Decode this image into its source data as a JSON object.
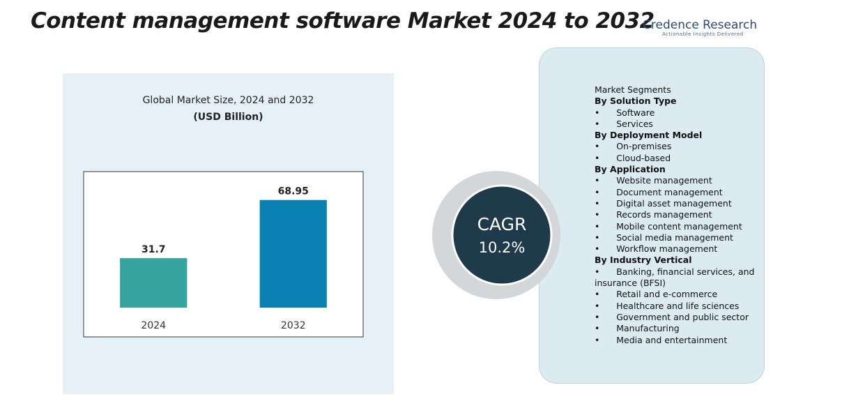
{
  "title": "Content management software Market 2024 to 2032",
  "logo": {
    "name": "Credence Research",
    "tagline": "Actionable Insights Delivered"
  },
  "chart_data": {
    "type": "bar",
    "title": "Global Market Size, 2024 and 2032",
    "subtitle": "(USD Billion)",
    "categories": [
      "2024",
      "2032"
    ],
    "values": [
      31.7,
      68.95
    ],
    "colors": [
      "#37a39f",
      "#0b80b2"
    ],
    "ylim": [
      0,
      80
    ]
  },
  "cagr": {
    "label": "CAGR",
    "value": "10.2%"
  },
  "segments": {
    "heading": "Market Segments",
    "groups": [
      {
        "name": "By Solution Type",
        "items": [
          "Software",
          "Services"
        ]
      },
      {
        "name": "By Deployment Model",
        "items": [
          "On-premises",
          "Cloud-based"
        ]
      },
      {
        "name": "By Application",
        "items": [
          "Website management",
          "Document management",
          "Digital asset management",
          "Records management",
          "Mobile content management",
          "Social media management",
          "Workflow management"
        ]
      },
      {
        "name": "By Industry Vertical",
        "items": [
          "Banking, financial services, and insurance (BFSI)",
          "Retail and e-commerce",
          "Healthcare and life sciences",
          "Government and public sector",
          "Manufacturing",
          "Media and entertainment"
        ]
      }
    ]
  }
}
